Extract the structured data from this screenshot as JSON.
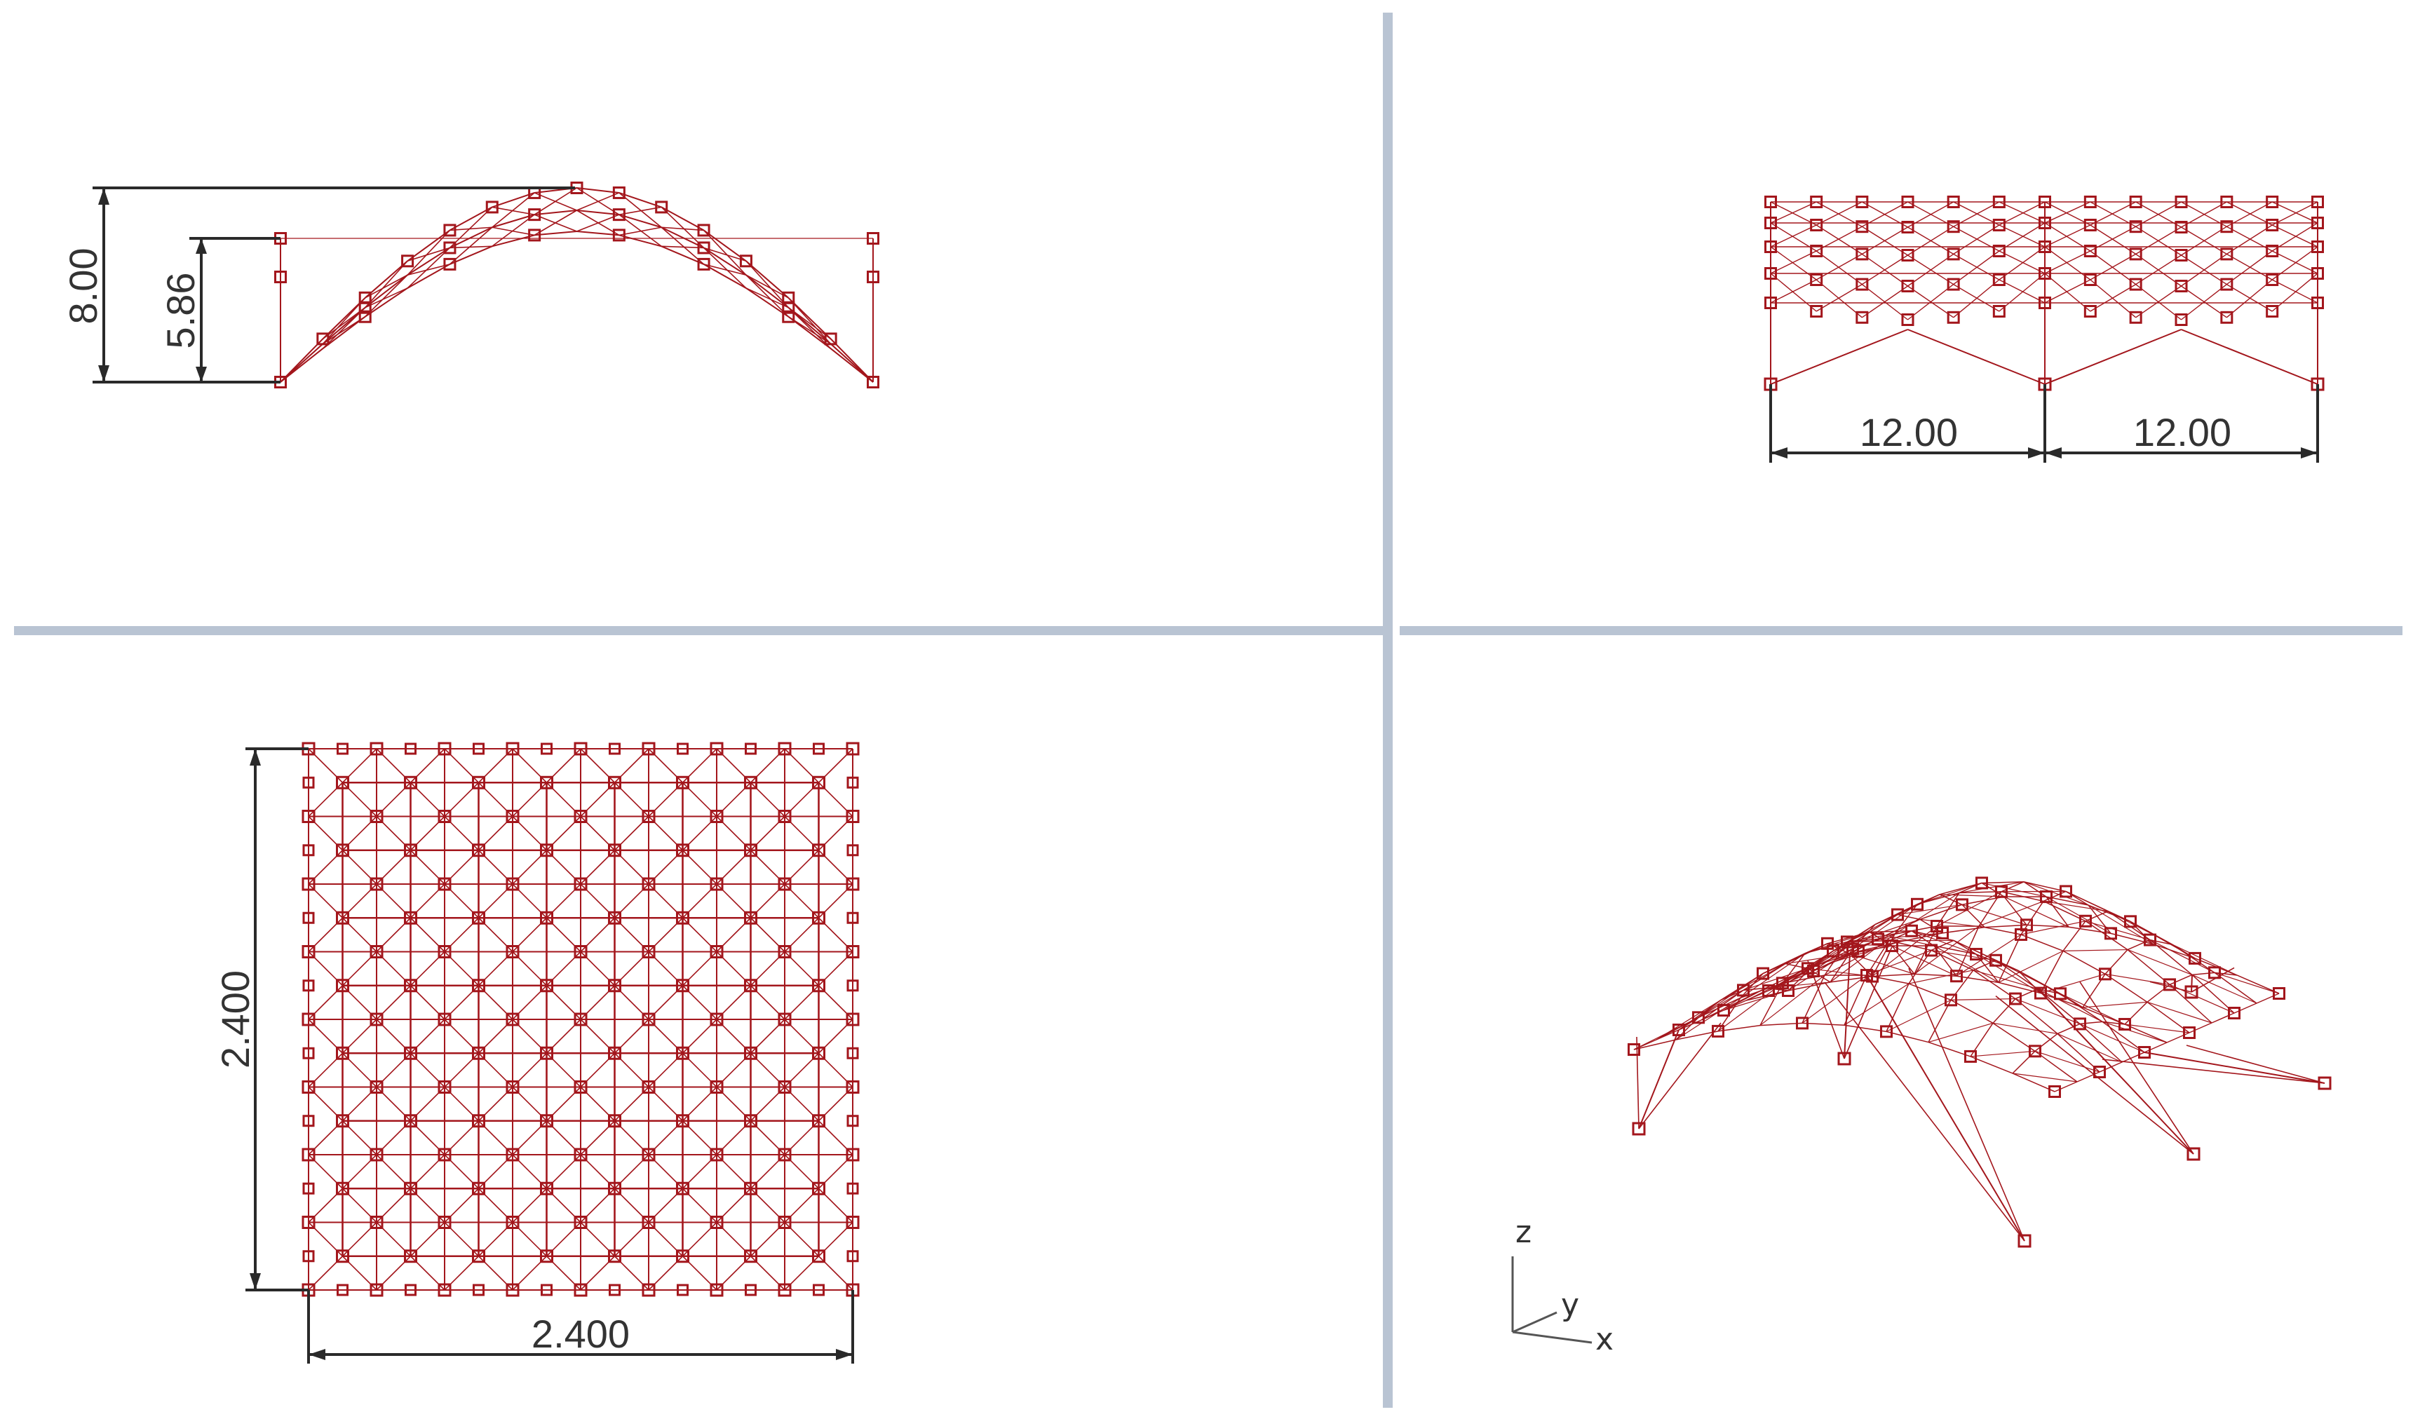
{
  "app": {
    "type": "cad-viewport-layout",
    "colors": {
      "background": "#ffffff",
      "divider": "#b9c4d3",
      "member": "#a3161c",
      "dimension": "#2a2a2a"
    }
  },
  "viewports": [
    {
      "id": "front-view",
      "dimensions": {
        "overall_height": "8.00",
        "arch_height": "5.86"
      }
    },
    {
      "id": "right-view",
      "dimensions": {
        "span_left": "12.00",
        "span_right": "12.00"
      }
    },
    {
      "id": "top-view",
      "dimensions": {
        "depth": "2.400",
        "width": "2.400"
      }
    },
    {
      "id": "perspective-view",
      "axes": {
        "z": "z",
        "y": "y",
        "x": "x"
      }
    }
  ],
  "icons": [
    "axis-gizmo-icon",
    "node-marker-icon"
  ]
}
